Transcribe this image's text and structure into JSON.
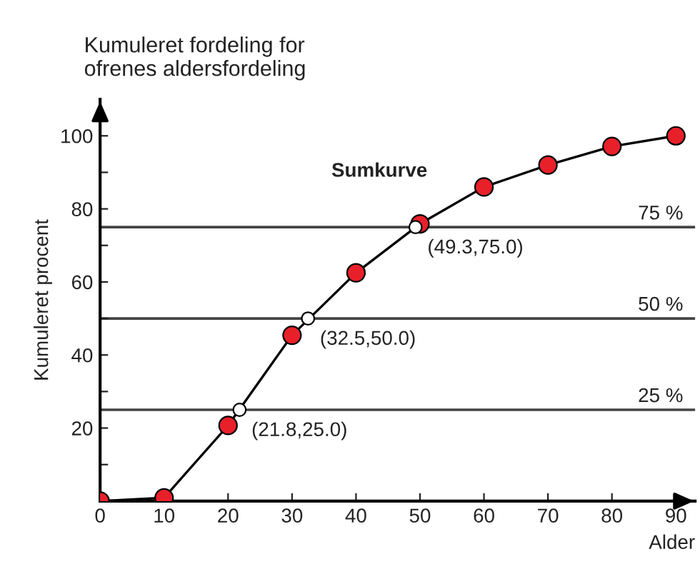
{
  "chart_data": {
    "type": "line",
    "title": "Kumuleret fordeling for\nofrenes aldersfordeling",
    "xlabel": "Alder",
    "ylabel": "Kumuleret procent",
    "x": [
      0,
      10,
      20,
      30,
      40,
      50,
      60,
      70,
      80,
      90
    ],
    "series": [
      {
        "color": "#e8202a",
        "marker": "circle",
        "values": [
          0,
          0.9,
          20.7,
          45.4,
          62.5,
          75.9,
          86,
          92,
          97.1,
          100
        ]
      },
      {
        "type": "scatter",
        "color": "#ffffff",
        "marker": "circle",
        "x": [
          21.8,
          32.5,
          49.3
        ],
        "values": [
          25.0,
          50.0,
          75.0
        ]
      }
    ],
    "xlim": [
      0,
      93
    ],
    "ylim": [
      0,
      110
    ],
    "xticks": [
      {
        "value": 0,
        "label": "0"
      },
      10,
      20,
      30,
      40,
      50,
      60,
      70,
      80,
      90
    ],
    "yticks": [
      {
        "value": 0,
        "label": null
      },
      {
        "value": 10,
        "label": null
      },
      20,
      {
        "value": 30,
        "label": null
      },
      40,
      {
        "value": 50,
        "label": null
      },
      60,
      {
        "value": 70,
        "label": null
      },
      80,
      {
        "value": 90,
        "label": null
      },
      100
    ],
    "ref_lines": [
      {
        "axis": "y",
        "value": 25,
        "label": "25 %",
        "color": "#444444"
      },
      {
        "axis": "y",
        "value": 50,
        "label": "50 %",
        "color": "#444444"
      },
      {
        "axis": "y",
        "value": 75,
        "label": "75 %",
        "color": "#444444"
      }
    ],
    "annotations": [
      {
        "text": "(21.8,25.0)",
        "x": 21.8,
        "y": 25.0
      },
      {
        "text": "(32.5,50.0)",
        "x": 32.5,
        "y": 50.0
      },
      {
        "text": "(49.3,75.0)",
        "x": 49.3,
        "y": 75.0
      },
      "Sumkurve"
    ],
    "grid": false,
    "legend": false
  }
}
